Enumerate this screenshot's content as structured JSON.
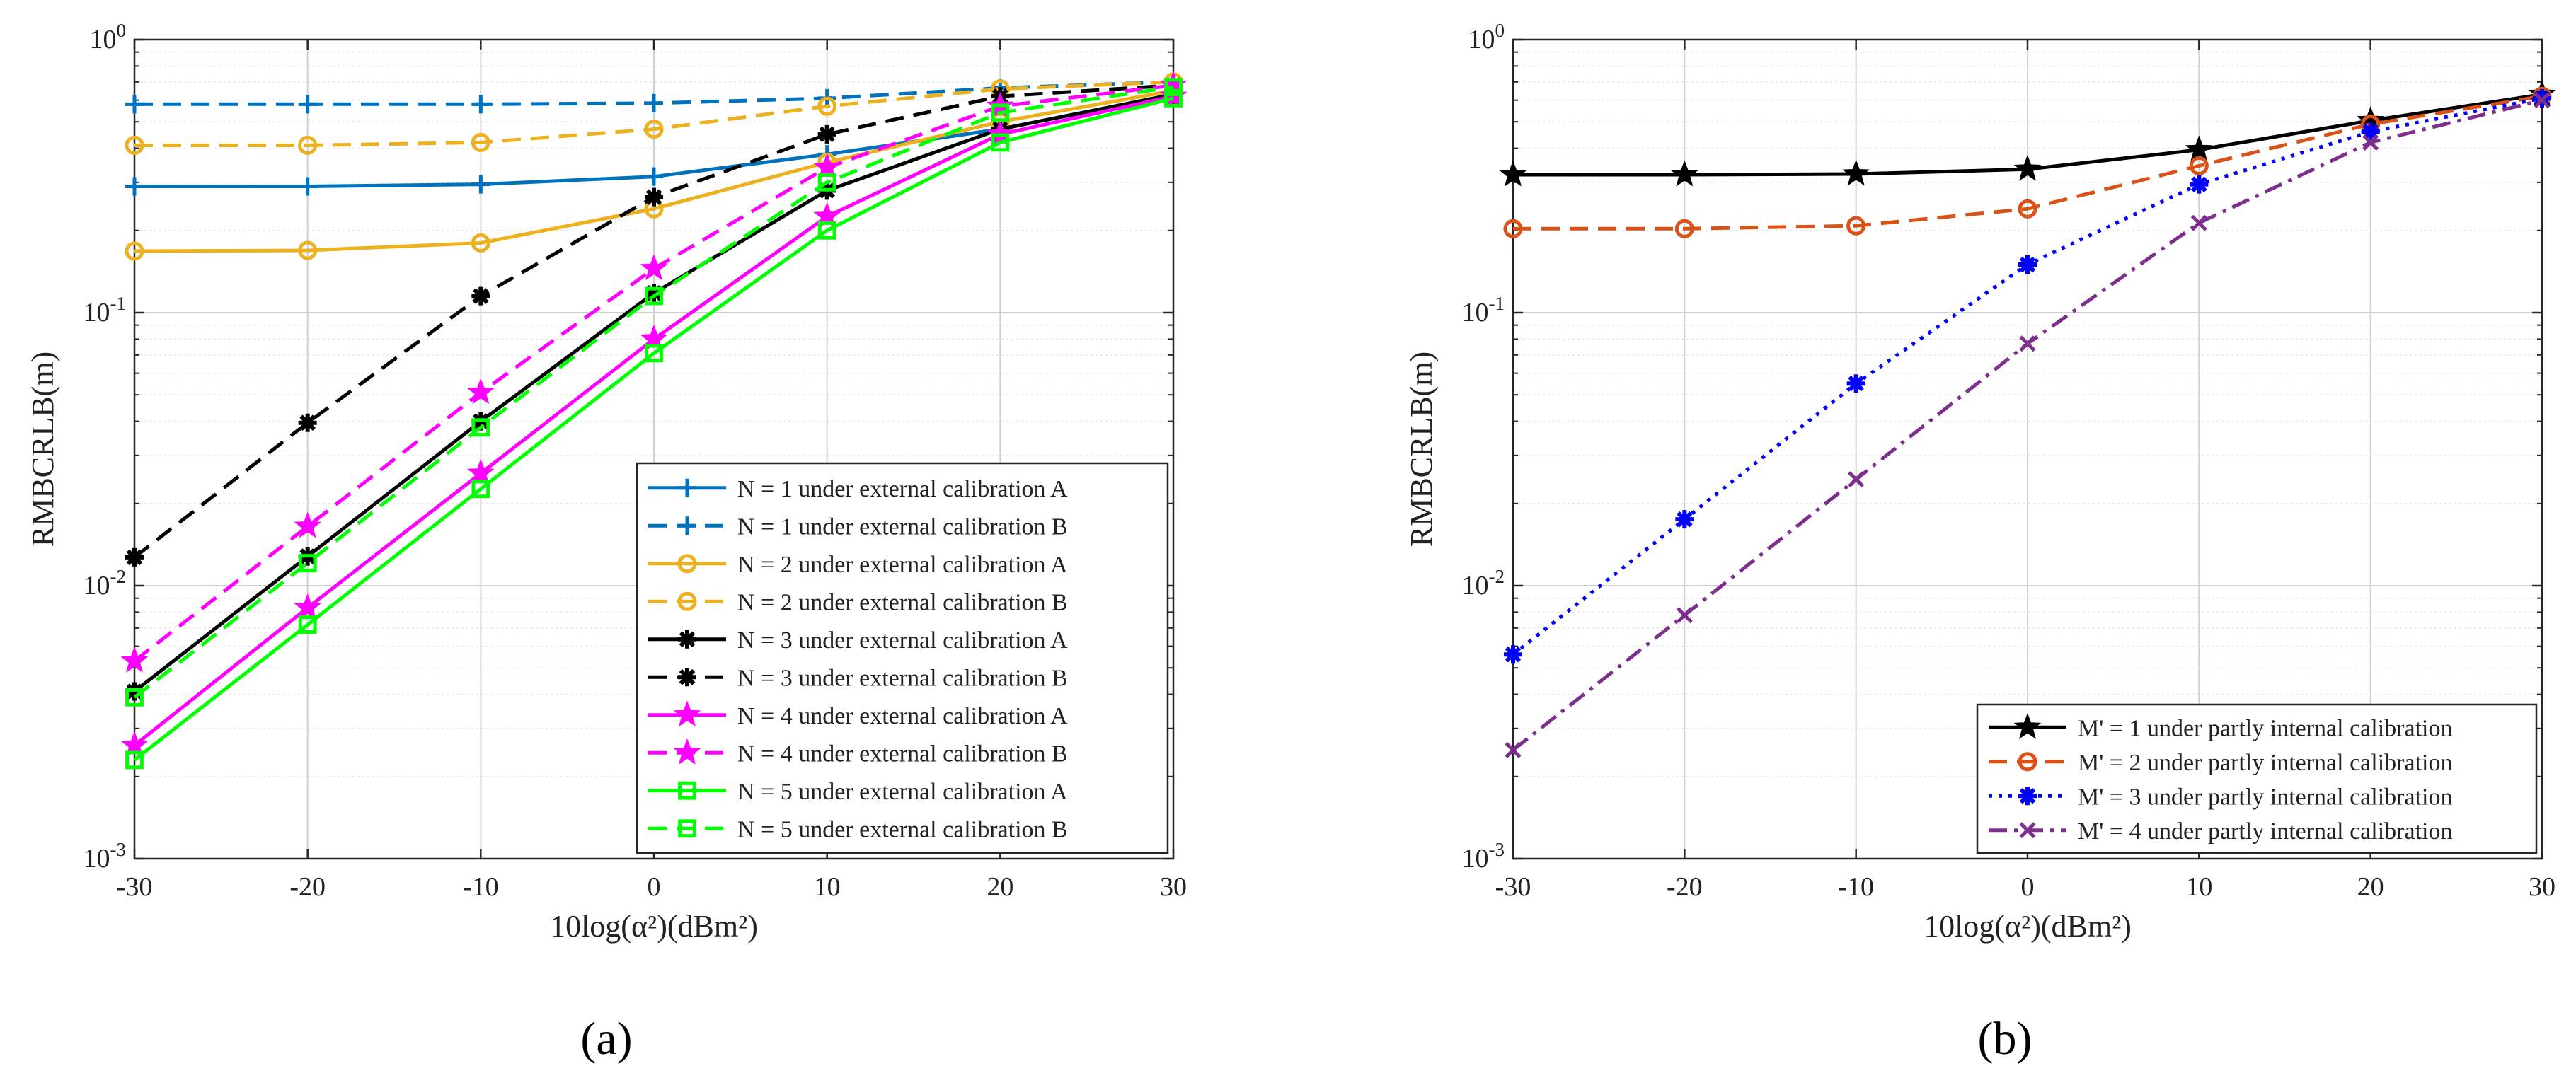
{
  "chart_data": [
    {
      "type": "line",
      "panel_label": "(a)",
      "xlabel": "10log(α²)(dBm²)",
      "ylabel": "RMBCRLB(m)",
      "yscale": "log",
      "xlim": [
        -30,
        30
      ],
      "ylim": [
        0.001,
        1
      ],
      "grid": true,
      "legend_position": "bottom-right",
      "x": [
        -30,
        -20,
        -10,
        0,
        10,
        20,
        30
      ],
      "x_tick_labels": [
        "-30",
        "-20",
        "-10",
        "0",
        "10",
        "20",
        "30"
      ],
      "y_tick_labels": [
        {
          "base": "10",
          "exp": "0"
        },
        {
          "base": "10",
          "exp": "-1"
        },
        {
          "base": "10",
          "exp": "-2"
        },
        {
          "base": "10",
          "exp": "-3"
        }
      ],
      "series": [
        {
          "name": "N = 1 under external calibration A",
          "color": "#0072BD",
          "dash": "solid",
          "marker": "plus",
          "values": [
            0.29,
            0.29,
            0.295,
            0.315,
            0.38,
            0.47,
            0.63
          ]
        },
        {
          "name": "N = 1 under external calibration B",
          "color": "#0072BD",
          "dash": "dashed",
          "marker": "plus",
          "values": [
            0.58,
            0.58,
            0.58,
            0.585,
            0.61,
            0.665,
            0.7
          ]
        },
        {
          "name": "N = 2 under external calibration A",
          "color": "#EDB120",
          "dash": "solid",
          "marker": "circle",
          "values": [
            0.168,
            0.169,
            0.18,
            0.24,
            0.355,
            0.5,
            0.65
          ]
        },
        {
          "name": "N = 2 under external calibration B",
          "color": "#EDB120",
          "dash": "dashed",
          "marker": "circle",
          "values": [
            0.41,
            0.41,
            0.42,
            0.47,
            0.57,
            0.66,
            0.7
          ]
        },
        {
          "name": "N = 3 under external calibration A",
          "color": "#000000",
          "dash": "solid",
          "marker": "asterisk",
          "values": [
            0.0041,
            0.0128,
            0.04,
            0.118,
            0.28,
            0.47,
            0.63
          ]
        },
        {
          "name": "N = 3 under external calibration B",
          "color": "#000000",
          "dash": "dashed",
          "marker": "asterisk",
          "values": [
            0.0127,
            0.0395,
            0.115,
            0.265,
            0.45,
            0.62,
            0.68
          ]
        },
        {
          "name": "N = 4 under external calibration A",
          "color": "#FF00FF",
          "dash": "solid",
          "marker": "star",
          "values": [
            0.0026,
            0.0083,
            0.0258,
            0.08,
            0.225,
            0.45,
            0.62
          ]
        },
        {
          "name": "N = 4 under external calibration B",
          "color": "#FF00FF",
          "dash": "dashed",
          "marker": "star",
          "values": [
            0.0053,
            0.0165,
            0.051,
            0.145,
            0.34,
            0.57,
            0.68
          ]
        },
        {
          "name": "N = 5 under external calibration A",
          "color": "#00FF00",
          "dash": "solid",
          "marker": "square",
          "values": [
            0.0023,
            0.0072,
            0.0226,
            0.071,
            0.2,
            0.42,
            0.61
          ]
        },
        {
          "name": "N = 5 under external calibration B",
          "color": "#00FF00",
          "dash": "dashed",
          "marker": "square",
          "values": [
            0.0039,
            0.0121,
            0.038,
            0.115,
            0.3,
            0.54,
            0.67
          ]
        }
      ]
    },
    {
      "type": "line",
      "panel_label": "(b)",
      "xlabel": "10log(α²)(dBm²)",
      "ylabel": "RMBCRLB(m)",
      "yscale": "log",
      "xlim": [
        -30,
        30
      ],
      "ylim": [
        0.001,
        1
      ],
      "grid": true,
      "legend_position": "bottom-right",
      "x": [
        -30,
        -20,
        -10,
        0,
        10,
        20,
        30
      ],
      "x_tick_labels": [
        "-30",
        "-20",
        "-10",
        "0",
        "10",
        "20",
        "30"
      ],
      "y_tick_labels": [
        {
          "base": "10",
          "exp": "0"
        },
        {
          "base": "10",
          "exp": "-1"
        },
        {
          "base": "10",
          "exp": "-2"
        },
        {
          "base": "10",
          "exp": "-3"
        }
      ],
      "series": [
        {
          "name": "M' = 1 under partly internal calibration",
          "color": "#000000",
          "dash": "solid",
          "marker": "star",
          "values": [
            0.32,
            0.32,
            0.322,
            0.335,
            0.395,
            0.505,
            0.63
          ]
        },
        {
          "name": "M' = 2 under partly internal calibration",
          "color": "#D95319",
          "dash": "dashed",
          "marker": "circle",
          "values": [
            0.203,
            0.203,
            0.208,
            0.24,
            0.345,
            0.49,
            0.62
          ]
        },
        {
          "name": "M' = 3 under partly internal calibration",
          "color": "#0000FF",
          "dash": "dotted",
          "marker": "asterisk",
          "values": [
            0.0056,
            0.0175,
            0.055,
            0.15,
            0.295,
            0.46,
            0.61
          ]
        },
        {
          "name": "M' = 4 under partly internal calibration",
          "color": "#7E2F8E",
          "dash": "dashdot",
          "marker": "x",
          "values": [
            0.0025,
            0.0078,
            0.0245,
            0.077,
            0.213,
            0.42,
            0.6
          ]
        }
      ]
    }
  ]
}
